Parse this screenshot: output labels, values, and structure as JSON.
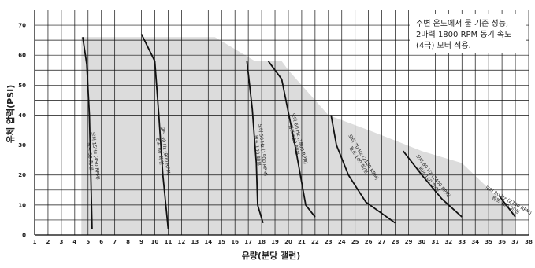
{
  "chart_data": {
    "type": "line",
    "xlabel": "유량(분당 갤런)",
    "ylabel": "유체 압력(PSI)",
    "xlim": [
      1,
      38
    ],
    "ylim": [
      0,
      75
    ],
    "x_ticks": [
      "1",
      "2",
      "3",
      "4",
      "5",
      "6",
      "7",
      "8",
      "9",
      "10",
      "11",
      "12",
      "13",
      "14",
      "15",
      "16",
      "17",
      "18",
      "19",
      "20",
      "21",
      "22",
      "23",
      "24",
      "25",
      "26",
      "27",
      "28",
      "29",
      "30",
      "31",
      "32",
      "33",
      "34",
      "35",
      "36",
      "37",
      "38"
    ],
    "y_ticks": [
      "0",
      "10",
      "20",
      "30",
      "40",
      "50",
      "60",
      "70"
    ],
    "annotation": [
      "주변 온도에서 물 기준 성능,",
      "2마력 1800 RPM 동기 속도",
      "(4극) 모터 적용."
    ],
    "shaded_area": [
      [
        4.5,
        66
      ],
      [
        14.5,
        66
      ],
      [
        17.5,
        58
      ],
      [
        19.5,
        58
      ],
      [
        20,
        55
      ],
      [
        23,
        40
      ],
      [
        26,
        35
      ],
      [
        30,
        28
      ],
      [
        33,
        24
      ],
      [
        37,
        7
      ],
      [
        37,
        0
      ],
      [
        4.5,
        0
      ]
    ],
    "series": [
      {
        "name": "모터 15Hz (450 RPM) 펌프 30 회/분",
        "label_lines": [
          "모터 15Hz (450 RPM)",
          "펌프 30 회/분"
        ],
        "points": [
          [
            4.6,
            66
          ],
          [
            4.9,
            57
          ],
          [
            5.1,
            40
          ],
          [
            5.3,
            2
          ]
        ]
      },
      {
        "name": "모터 30 Hz (900 RPM) 펌프 60 회/분",
        "label_lines": [
          "모터 30 Hz (900 RPM)",
          "펌프 60 회/분"
        ],
        "points": [
          [
            9.0,
            67
          ],
          [
            10.0,
            58
          ],
          [
            10.3,
            40
          ],
          [
            10.6,
            20
          ],
          [
            11.0,
            2
          ]
        ]
      },
      {
        "name": "모터 50 Hz (1500 RPM) 펌프 100 회/분",
        "label_lines": [
          "모터 50 Hz (1500 RPM)",
          "펌프 100 회/분"
        ],
        "points": [
          [
            16.9,
            58
          ],
          [
            17.3,
            42
          ],
          [
            17.6,
            24
          ],
          [
            17.7,
            10
          ],
          [
            18.1,
            4
          ]
        ]
      },
      {
        "name": "모터 60 Hz (1800 RPM) 펌프 120 회/분",
        "label_lines": [
          "모터 60 Hz (1800 RPM)",
          "펌프 120 회/분"
        ],
        "points": [
          [
            18.5,
            58
          ],
          [
            19.5,
            52
          ],
          [
            20.5,
            30
          ],
          [
            21.3,
            10
          ],
          [
            22.0,
            6
          ]
        ]
      },
      {
        "name": "모터 70 Hz (2100 RPM) 펌프 140 회/분",
        "label_lines": [
          "모터 70 Hz (2100 RPM)",
          "펌프 140 회/분"
        ],
        "points": [
          [
            23.2,
            40
          ],
          [
            23.6,
            30
          ],
          [
            24.5,
            20
          ],
          [
            25.8,
            11
          ],
          [
            28.0,
            4
          ]
        ]
      },
      {
        "name": "모터 80 Hz (2400 RPM) 펌프 160 회/분",
        "label_lines": [
          "모터 80 Hz (2400 RPM)",
          "펌프 160 회/분"
        ],
        "points": [
          [
            28.6,
            28
          ],
          [
            30.0,
            20
          ],
          [
            31.5,
            12
          ],
          [
            33.0,
            6
          ]
        ]
      },
      {
        "name": "모터 90 Hz (2700 RPM) 펌프 180 회/분",
        "label_lines": [
          "모터 90 Hz (2700 RPM)",
          "펌프 180 회/분"
        ],
        "points": [
          [
            35.8,
            13
          ],
          [
            37.0,
            6
          ]
        ]
      }
    ],
    "grid": true,
    "colors": {
      "shade": "#dcdcdc",
      "curve": "#111111",
      "grid": "#111111"
    }
  }
}
